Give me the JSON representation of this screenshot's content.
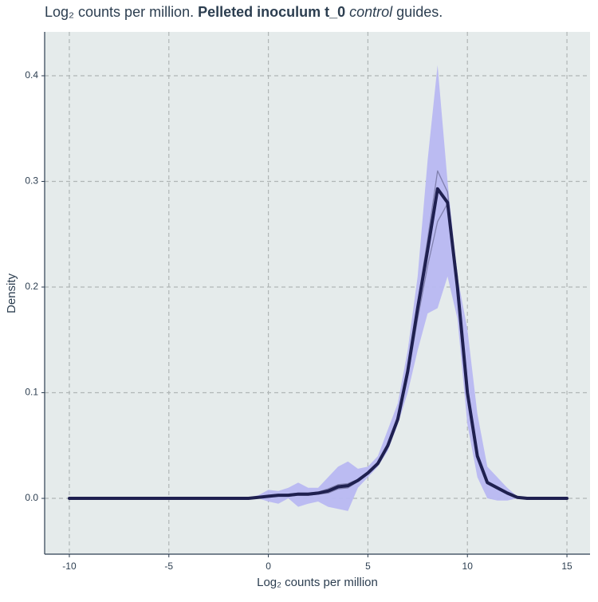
{
  "chart_data": {
    "type": "density",
    "title": [
      "Log₂ counts per million. ",
      "Pelleted inoculum t_0",
      " control",
      " guides."
    ],
    "x_label": "Log₂ counts per million",
    "y_label": "Density",
    "x": [
      -10,
      -1,
      -0.5,
      0,
      0.5,
      1,
      1.5,
      2,
      2.5,
      3,
      3.5,
      4,
      4.5,
      5,
      5.5,
      6,
      6.5,
      7,
      7.5,
      8,
      8.5,
      9,
      9.5,
      10,
      10.5,
      11,
      11.5,
      12,
      12.5,
      13,
      15
    ],
    "band": {
      "color": "#b8b8f2",
      "lower": [
        0,
        0,
        0,
        -0.003,
        -0.005,
        0,
        -0.008,
        -0.005,
        -0.003,
        -0.008,
        -0.01,
        -0.012,
        0.01,
        0.02,
        0.03,
        0.045,
        0.07,
        0.1,
        0.14,
        0.175,
        0.18,
        0.21,
        0.17,
        0.07,
        0.02,
        0,
        -0.002,
        -0.002,
        0,
        0,
        0
      ],
      "upper": [
        0,
        0.001,
        0.003,
        0.008,
        0.007,
        0.01,
        0.015,
        0.01,
        0.01,
        0.02,
        0.03,
        0.035,
        0.028,
        0.03,
        0.04,
        0.065,
        0.09,
        0.14,
        0.21,
        0.32,
        0.41,
        0.3,
        0.21,
        0.16,
        0.08,
        0.03,
        0.02,
        0.01,
        0.002,
        0,
        0
      ]
    },
    "series": [
      {
        "color": "#7a7aa6",
        "values": [
          0,
          0,
          0.001,
          0.002,
          0.003,
          0.004,
          0.005,
          0.005,
          0.006,
          0.009,
          0.013,
          0.014,
          0.018,
          0.024,
          0.033,
          0.05,
          0.075,
          0.12,
          0.185,
          0.245,
          0.31,
          0.29,
          0.2,
          0.1,
          0.04,
          0.015,
          0.01,
          0.005,
          0.001,
          0,
          0
        ]
      },
      {
        "color": "#7a7aa6",
        "values": [
          0,
          0,
          0.001,
          0.002,
          0.002,
          0.002,
          0.003,
          0.003,
          0.004,
          0.005,
          0.009,
          0.01,
          0.016,
          0.024,
          0.033,
          0.05,
          0.075,
          0.115,
          0.17,
          0.22,
          0.262,
          0.279,
          0.21,
          0.1,
          0.04,
          0.015,
          0.01,
          0.005,
          0.001,
          0,
          0
        ]
      },
      {
        "color": "#1f2050",
        "values": [
          0,
          0,
          0.001,
          0.002,
          0.003,
          0.003,
          0.004,
          0.004,
          0.005,
          0.007,
          0.011,
          0.012,
          0.017,
          0.024,
          0.033,
          0.05,
          0.075,
          0.12,
          0.18,
          0.235,
          0.293,
          0.28,
          0.2,
          0.1,
          0.04,
          0.015,
          0.01,
          0.005,
          0.001,
          0,
          0
        ]
      }
    ],
    "xlim": [
      -11.24,
      16.16
    ],
    "ylim": [
      -0.0528,
      0.4415
    ],
    "xticks": [
      -10,
      -5,
      0,
      5,
      10,
      15
    ],
    "yticks": [
      {
        "value": 0,
        "label": "0.0"
      },
      {
        "value": 0.1,
        "label": "0.1"
      },
      {
        "value": 0.2,
        "label": "0.2"
      },
      {
        "value": 0.3,
        "label": "0.3"
      },
      {
        "value": 0.4,
        "label": "0.4"
      }
    ],
    "grid": true
  }
}
